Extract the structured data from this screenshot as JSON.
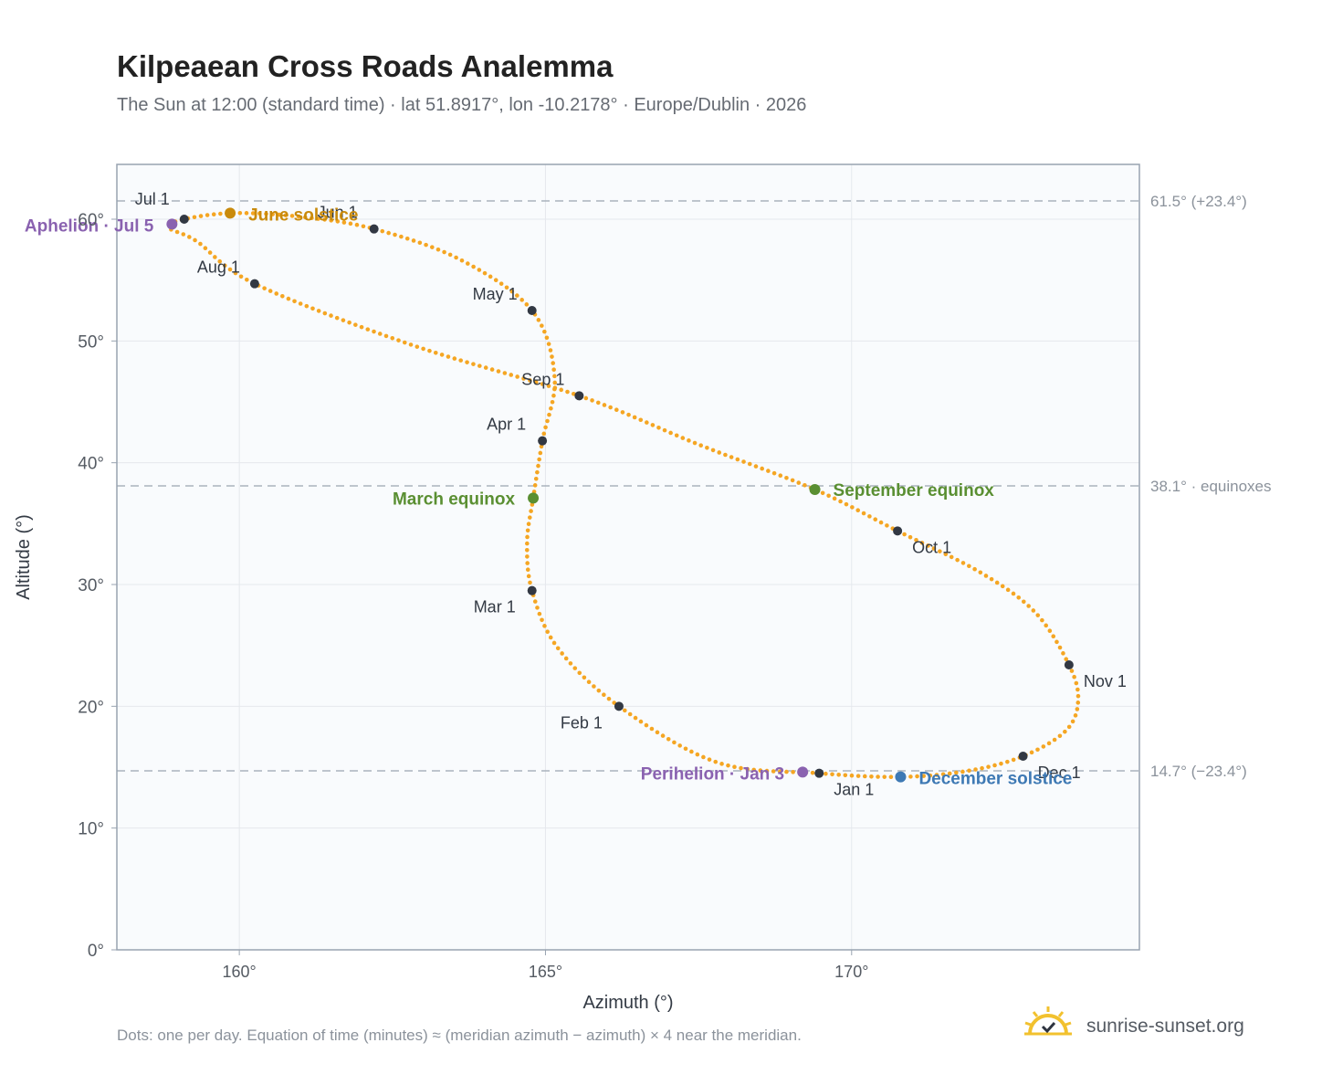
{
  "chart_data": {
    "type": "scatter",
    "title": "Kilpeaean Cross Roads Analemma",
    "subtitle": "The Sun at 12:00 (standard time) · lat 51.8917°, lon -10.2178° · Europe/Dublin · 2026",
    "xlabel": "Azimuth (°)",
    "ylabel": "Altitude (°)",
    "xlim": [
      158,
      174.7
    ],
    "ylim": [
      0,
      64.5
    ],
    "grid": true,
    "x_ticks": [
      160,
      165,
      170
    ],
    "x_tick_labels": [
      "160°",
      "165°",
      "170°"
    ],
    "y_ticks": [
      0,
      10,
      20,
      30,
      40,
      50,
      60
    ],
    "y_tick_labels": [
      "0°",
      "10°",
      "20°",
      "30°",
      "40°",
      "50°",
      "60°"
    ],
    "reference_lines": [
      {
        "y": 61.5,
        "label": "61.5° (+23.4°)"
      },
      {
        "y": 38.1,
        "label": "38.1° · equinoxes"
      },
      {
        "y": 14.7,
        "label": "14.7° (−23.4°)"
      }
    ],
    "curve": {
      "series": "daily sun position",
      "color": "#f5a623",
      "points": [
        [
          169.47,
          14.5
        ],
        [
          167.8,
          15.4
        ],
        [
          166.2,
          20.0
        ],
        [
          165.2,
          24.8
        ],
        [
          164.78,
          29.5
        ],
        [
          164.7,
          33.5
        ],
        [
          164.8,
          37.1
        ],
        [
          164.95,
          41.8
        ],
        [
          165.15,
          47.0
        ],
        [
          164.78,
          52.5
        ],
        [
          163.6,
          56.7
        ],
        [
          162.2,
          59.2
        ],
        [
          161.0,
          60.2
        ],
        [
          159.9,
          60.5
        ],
        [
          159.1,
          60.0
        ],
        [
          158.85,
          59.3
        ],
        [
          159.3,
          58.2
        ],
        [
          160.25,
          54.7
        ],
        [
          162.8,
          49.7
        ],
        [
          165.55,
          45.5
        ],
        [
          167.5,
          41.5
        ],
        [
          169.4,
          37.8
        ],
        [
          170.75,
          34.4
        ],
        [
          172.1,
          31.0
        ],
        [
          173.0,
          27.7
        ],
        [
          173.55,
          23.4
        ],
        [
          173.7,
          20.5
        ],
        [
          173.5,
          18.0
        ],
        [
          172.8,
          15.9
        ],
        [
          171.9,
          14.7
        ],
        [
          170.8,
          14.2
        ],
        [
          169.47,
          14.5
        ]
      ]
    },
    "month_markers": [
      {
        "label": "Jan 1",
        "x": 169.47,
        "y": 14.5,
        "anchor": "start",
        "dx": 16,
        "dy": 24
      },
      {
        "label": "Feb 1",
        "x": 166.2,
        "y": 20.0,
        "anchor": "end",
        "dx": -18,
        "dy": 24
      },
      {
        "label": "Mar 1",
        "x": 164.78,
        "y": 29.5,
        "anchor": "end",
        "dx": -18,
        "dy": 24
      },
      {
        "label": "Apr 1",
        "x": 164.95,
        "y": 41.8,
        "anchor": "end",
        "dx": -18,
        "dy": -12
      },
      {
        "label": "May 1",
        "x": 164.78,
        "y": 52.5,
        "anchor": "end",
        "dx": -16,
        "dy": -12
      },
      {
        "label": "Jun 1",
        "x": 162.2,
        "y": 59.2,
        "anchor": "end",
        "dx": -18,
        "dy": -12
      },
      {
        "label": "Jul 1",
        "x": 159.1,
        "y": 60.0,
        "anchor": "end",
        "dx": -16,
        "dy": -16
      },
      {
        "label": "Aug 1",
        "x": 160.25,
        "y": 54.7,
        "anchor": "end",
        "dx": -16,
        "dy": -12
      },
      {
        "label": "Sep 1",
        "x": 165.55,
        "y": 45.5,
        "anchor": "end",
        "dx": -16,
        "dy": -12
      },
      {
        "label": "Oct 1",
        "x": 170.75,
        "y": 34.4,
        "anchor": "start",
        "dx": 16,
        "dy": 24
      },
      {
        "label": "Nov 1",
        "x": 173.55,
        "y": 23.4,
        "anchor": "start",
        "dx": 16,
        "dy": 24
      },
      {
        "label": "Dec 1",
        "x": 172.8,
        "y": 15.9,
        "anchor": "start",
        "dx": 16,
        "dy": 24
      }
    ],
    "events": [
      {
        "label": "June solstice",
        "x": 159.85,
        "y": 60.5,
        "color": "#c98a0b",
        "anchor": "start",
        "dx": 20,
        "dy": 8
      },
      {
        "label": "March equinox",
        "x": 164.8,
        "y": 37.1,
        "color": "#5a8f32",
        "anchor": "end",
        "dx": -20,
        "dy": 7
      },
      {
        "label": "September equinox",
        "x": 169.4,
        "y": 37.8,
        "color": "#5a8f32",
        "anchor": "start",
        "dx": 20,
        "dy": 7
      },
      {
        "label": "December solstice",
        "x": 170.8,
        "y": 14.2,
        "color": "#3e79b4",
        "anchor": "start",
        "dx": 20,
        "dy": 8
      },
      {
        "label": "Aphelion · Jul 5",
        "x": 158.9,
        "y": 59.6,
        "color": "#8a62b0",
        "anchor": "end",
        "dx": -20,
        "dy": 8
      },
      {
        "label": "Perihelion · Jan 3",
        "x": 169.2,
        "y": 14.6,
        "color": "#8a62b0",
        "anchor": "end",
        "dx": -20,
        "dy": 8
      }
    ],
    "colors": {
      "curve": "#f5a623",
      "marker": "#323843",
      "plot_background": "#f9fbfd",
      "grid": "#e5e8ed",
      "frame": "#98a3b0",
      "reference_line": "#aab3bd"
    }
  },
  "footnote": "Dots: one per day. Equation of time (minutes) ≈ (meridian azimuth − azimuth) × 4 near the meridian.",
  "brand": {
    "name": "sunrise-sunset.org",
    "icon": "sun-icon"
  }
}
